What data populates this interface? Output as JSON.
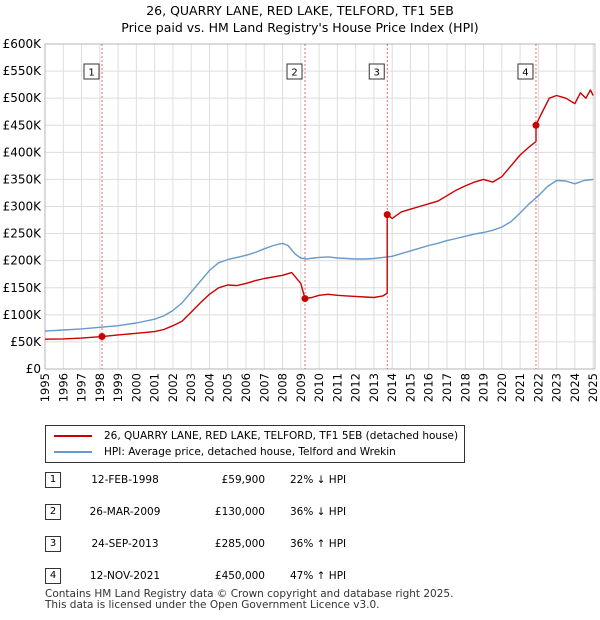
{
  "title_line1": "26, QUARRY LANE, RED LAKE, TELFORD, TF1 5EB",
  "title_line2": "Price paid vs. HM Land Registry's House Price Index (HPI)",
  "chart_data": {
    "type": "line",
    "title": "Price paid vs. HM Land Registry's House Price Index (HPI)",
    "xlabel": "",
    "ylabel": "",
    "xlim": [
      1995,
      2025.1
    ],
    "ylim": [
      0,
      600000
    ],
    "grid": true,
    "x_ticks": [
      1995,
      1996,
      1997,
      1998,
      1999,
      2000,
      2001,
      2002,
      2003,
      2004,
      2005,
      2006,
      2007,
      2008,
      2009,
      2010,
      2011,
      2012,
      2013,
      2014,
      2015,
      2016,
      2017,
      2018,
      2019,
      2020,
      2021,
      2022,
      2023,
      2024,
      2025
    ],
    "y_ticks": [
      {
        "value": 0,
        "label": "£0"
      },
      {
        "value": 50000,
        "label": "£50K"
      },
      {
        "value": 100000,
        "label": "£100K"
      },
      {
        "value": 150000,
        "label": "£150K"
      },
      {
        "value": 200000,
        "label": "£200K"
      },
      {
        "value": 250000,
        "label": "£250K"
      },
      {
        "value": 300000,
        "label": "£300K"
      },
      {
        "value": 350000,
        "label": "£350K"
      },
      {
        "value": 400000,
        "label": "£400K"
      },
      {
        "value": 450000,
        "label": "£450K"
      },
      {
        "value": 500000,
        "label": "£500K"
      },
      {
        "value": 550000,
        "label": "£550K"
      },
      {
        "value": 600000,
        "label": "£600K"
      }
    ],
    "series": [
      {
        "name": "26, QUARRY LANE, RED LAKE, TELFORD, TF1 5EB (detached house)",
        "color": "#cc0000",
        "x": [
          1995.0,
          1996.0,
          1997.0,
          1998.12,
          1998.12,
          1999.0,
          2000.0,
          2001.0,
          2001.5,
          2002.0,
          2002.5,
          2003.0,
          2003.5,
          2004.0,
          2004.5,
          2005.0,
          2005.5,
          2006.0,
          2006.5,
          2007.0,
          2007.5,
          2008.0,
          2008.5,
          2009.0,
          2009.23,
          2009.23,
          2009.6,
          2010.0,
          2010.5,
          2011.0,
          2011.5,
          2012.0,
          2012.5,
          2013.0,
          2013.5,
          2013.73,
          2013.73,
          2014.0,
          2014.5,
          2015.0,
          2015.5,
          2016.0,
          2016.5,
          2017.0,
          2017.5,
          2018.0,
          2018.5,
          2019.0,
          2019.5,
          2020.0,
          2020.5,
          2021.0,
          2021.5,
          2021.87,
          2021.87,
          2022.0,
          2022.3,
          2022.6,
          2023.0,
          2023.5,
          2024.0,
          2024.3,
          2024.6,
          2024.85,
          2025.0
        ],
        "values": [
          55000,
          55500,
          57000,
          59900,
          59900,
          63000,
          66000,
          69000,
          73000,
          80000,
          88000,
          105000,
          122000,
          138000,
          150000,
          155000,
          154000,
          158000,
          163000,
          167000,
          170000,
          173000,
          178000,
          158000,
          130000,
          130000,
          132000,
          136000,
          138000,
          136000,
          135000,
          134000,
          133000,
          132000,
          135000,
          140000,
          285000,
          278000,
          290000,
          295000,
          300000,
          305000,
          310000,
          320000,
          330000,
          338000,
          345000,
          350000,
          345000,
          355000,
          375000,
          395000,
          410000,
          420000,
          450000,
          460000,
          480000,
          500000,
          505000,
          500000,
          490000,
          510000,
          500000,
          515000,
          505000
        ]
      },
      {
        "name": "HPI: Average price, detached house, Telford and Wrekin",
        "color": "#6699cc",
        "x": [
          1995.0,
          1996.0,
          1997.0,
          1998.0,
          1999.0,
          2000.0,
          2001.0,
          2001.5,
          2002.0,
          2002.5,
          2003.0,
          2003.5,
          2004.0,
          2004.5,
          2005.0,
          2005.5,
          2006.0,
          2006.5,
          2007.0,
          2007.5,
          2008.0,
          2008.3,
          2008.7,
          2009.0,
          2009.3,
          2009.7,
          2010.0,
          2010.5,
          2011.0,
          2011.5,
          2012.0,
          2012.5,
          2013.0,
          2013.5,
          2014.0,
          2014.5,
          2015.0,
          2015.5,
          2016.0,
          2016.5,
          2017.0,
          2017.5,
          2018.0,
          2018.5,
          2019.0,
          2019.5,
          2020.0,
          2020.5,
          2021.0,
          2021.5,
          2022.0,
          2022.5,
          2023.0,
          2023.5,
          2024.0,
          2024.5,
          2025.0
        ],
        "values": [
          70000,
          72000,
          74000,
          77000,
          80000,
          85000,
          92000,
          98000,
          108000,
          122000,
          142000,
          162000,
          182000,
          196000,
          202000,
          206000,
          210000,
          215000,
          222000,
          228000,
          232000,
          228000,
          212000,
          205000,
          203000,
          205000,
          206000,
          207000,
          205000,
          204000,
          203000,
          203000,
          204000,
          206000,
          208000,
          213000,
          218000,
          223000,
          228000,
          232000,
          237000,
          241000,
          245000,
          249000,
          252000,
          256000,
          262000,
          272000,
          288000,
          305000,
          320000,
          337000,
          348000,
          347000,
          342000,
          348000,
          350000
        ]
      }
    ],
    "markers": [
      {
        "label": "1",
        "x": 1998.12,
        "value": 59900
      },
      {
        "label": "2",
        "x": 2009.23,
        "value": 130000
      },
      {
        "label": "3",
        "x": 2013.73,
        "value": 285000
      },
      {
        "label": "4",
        "x": 2021.87,
        "value": 450000
      }
    ]
  },
  "legend": {
    "price_label": "26, QUARRY LANE, RED LAKE, TELFORD, TF1 5EB (detached house)",
    "hpi_label": "HPI: Average price, detached house, Telford and Wrekin"
  },
  "transactions": [
    {
      "num": "1",
      "date": "12-FEB-1998",
      "price": "£59,900",
      "hpi": "22% ↓ HPI"
    },
    {
      "num": "2",
      "date": "26-MAR-2009",
      "price": "£130,000",
      "hpi": "36% ↓ HPI"
    },
    {
      "num": "3",
      "date": "24-SEP-2013",
      "price": "£285,000",
      "hpi": "36% ↑ HPI"
    },
    {
      "num": "4",
      "date": "12-NOV-2021",
      "price": "£450,000",
      "hpi": "47% ↑ HPI"
    }
  ],
  "footer": {
    "line1": "Contains HM Land Registry data © Crown copyright and database right 2025.",
    "line2": "This data is licensed under the Open Government Licence v3.0."
  }
}
